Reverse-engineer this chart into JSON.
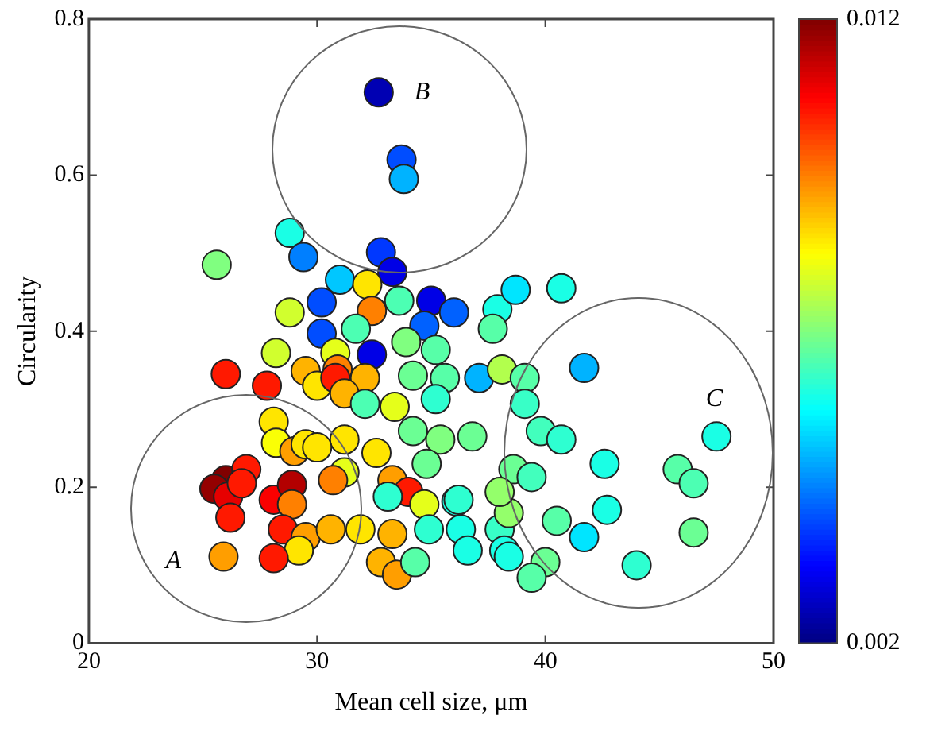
{
  "chart_data": {
    "type": "scatter",
    "xlabel": "Mean cell size, μm",
    "ylabel": "Circularity",
    "xlim": [
      20,
      50
    ],
    "ylim": [
      0,
      0.8
    ],
    "xticks": [
      20,
      30,
      40,
      50
    ],
    "yticks": [
      0,
      0.2,
      0.4,
      0.6,
      0.8
    ],
    "marker": "circle",
    "clim": [
      0.002,
      0.012
    ],
    "cticks": [
      0.002,
      0.012
    ],
    "annotations": [
      "A",
      "B",
      "C"
    ],
    "x": [
      32.7,
      33.7,
      33.8,
      28.8,
      29.4,
      25.6,
      28.8,
      30.2,
      28.2,
      30.2,
      26.0,
      27.8,
      29.5,
      30.0,
      28.1,
      28.2,
      29.0,
      29.5,
      26.0,
      25.5,
      26.9,
      26.1,
      26.7,
      26.2,
      28.1,
      28.9,
      28.9,
      28.5,
      29.5,
      29.2,
      25.9,
      28.1,
      32.8,
      33.3,
      31.0,
      32.2,
      33.6,
      35.0,
      36.0,
      32.4,
      31.7,
      34.7,
      32.4,
      33.9,
      35.2,
      34.2,
      35.6,
      35.2,
      30.8,
      30.9,
      30.8,
      32.1,
      31.2,
      33.4,
      32.1,
      34.2,
      35.4,
      36.8,
      32.6,
      31.2,
      30.0,
      34.8,
      31.2,
      30.7,
      33.3,
      34.0,
      33.1,
      34.7,
      36.1,
      30.6,
      31.9,
      33.3,
      34.9,
      36.3,
      32.8,
      33.5,
      34.3,
      36.6,
      37.9,
      38.7,
      37.7,
      37.1,
      38.1,
      39.1,
      39.1,
      39.8,
      38.6,
      39.4,
      36.2,
      38.0,
      38.4,
      38.2,
      40.7,
      41.7,
      47.5,
      40.7,
      42.6,
      45.8,
      46.5,
      38.0,
      42.7,
      40.5,
      41.7,
      46.5,
      38.4,
      40.0,
      39.4,
      44.0
    ],
    "values": [
      0.706,
      0.62,
      0.595,
      0.526,
      0.495,
      0.485,
      0.424,
      0.437,
      0.372,
      0.397,
      0.345,
      0.33,
      0.349,
      0.33,
      0.284,
      0.257,
      0.246,
      0.255,
      0.209,
      0.198,
      0.223,
      0.188,
      0.205,
      0.161,
      0.184,
      0.203,
      0.178,
      0.146,
      0.136,
      0.119,
      0.111,
      0.109,
      0.501,
      0.476,
      0.466,
      0.46,
      0.439,
      0.439,
      0.424,
      0.426,
      0.403,
      0.407,
      0.37,
      0.386,
      0.376,
      0.343,
      0.34,
      0.313,
      0.372,
      0.351,
      0.34,
      0.34,
      0.32,
      0.303,
      0.307,
      0.272,
      0.261,
      0.265,
      0.244,
      0.261,
      0.251,
      0.23,
      0.219,
      0.209,
      0.209,
      0.194,
      0.188,
      0.178,
      0.182,
      0.146,
      0.146,
      0.14,
      0.146,
      0.146,
      0.104,
      0.088,
      0.104,
      0.119,
      0.428,
      0.453,
      0.403,
      0.34,
      0.351,
      0.34,
      0.307,
      0.272,
      0.223,
      0.213,
      0.184,
      0.146,
      0.167,
      0.119,
      0.455,
      0.353,
      0.265,
      0.261,
      0.23,
      0.223,
      0.205,
      0.194,
      0.171,
      0.157,
      0.136,
      0.142,
      0.111,
      0.104,
      0.084,
      0.1
    ],
    "cvalues": [
      0.0025,
      0.004,
      0.005,
      0.006,
      0.0045,
      0.007,
      0.0078,
      0.004,
      0.0078,
      0.004,
      0.0105,
      0.0105,
      0.009,
      0.0085,
      0.0085,
      0.0082,
      0.0092,
      0.0085,
      0.012,
      0.0118,
      0.0105,
      0.011,
      0.0105,
      0.0105,
      0.0108,
      0.0115,
      0.0095,
      0.0105,
      0.0092,
      0.0085,
      0.0092,
      0.0105,
      0.0038,
      0.003,
      0.0052,
      0.0085,
      0.0065,
      0.003,
      0.0042,
      0.0095,
      0.0065,
      0.0042,
      0.003,
      0.007,
      0.0066,
      0.0068,
      0.0066,
      0.0062,
      0.008,
      0.0095,
      0.0105,
      0.009,
      0.009,
      0.008,
      0.0065,
      0.0068,
      0.007,
      0.0068,
      0.0085,
      0.0085,
      0.0085,
      0.0068,
      0.008,
      0.0095,
      0.0092,
      0.0105,
      0.0062,
      0.008,
      0.006,
      0.009,
      0.0085,
      0.009,
      0.0062,
      0.006,
      0.009,
      0.0092,
      0.0066,
      0.006,
      0.006,
      0.0055,
      0.0066,
      0.005,
      0.0075,
      0.0066,
      0.0063,
      0.0064,
      0.0068,
      0.0064,
      0.0062,
      0.0063,
      0.0072,
      0.006,
      0.006,
      0.005,
      0.006,
      0.0062,
      0.006,
      0.0066,
      0.0065,
      0.0072,
      0.006,
      0.0066,
      0.0055,
      0.0068,
      0.006,
      0.0068,
      0.0066,
      0.0062
    ]
  }
}
